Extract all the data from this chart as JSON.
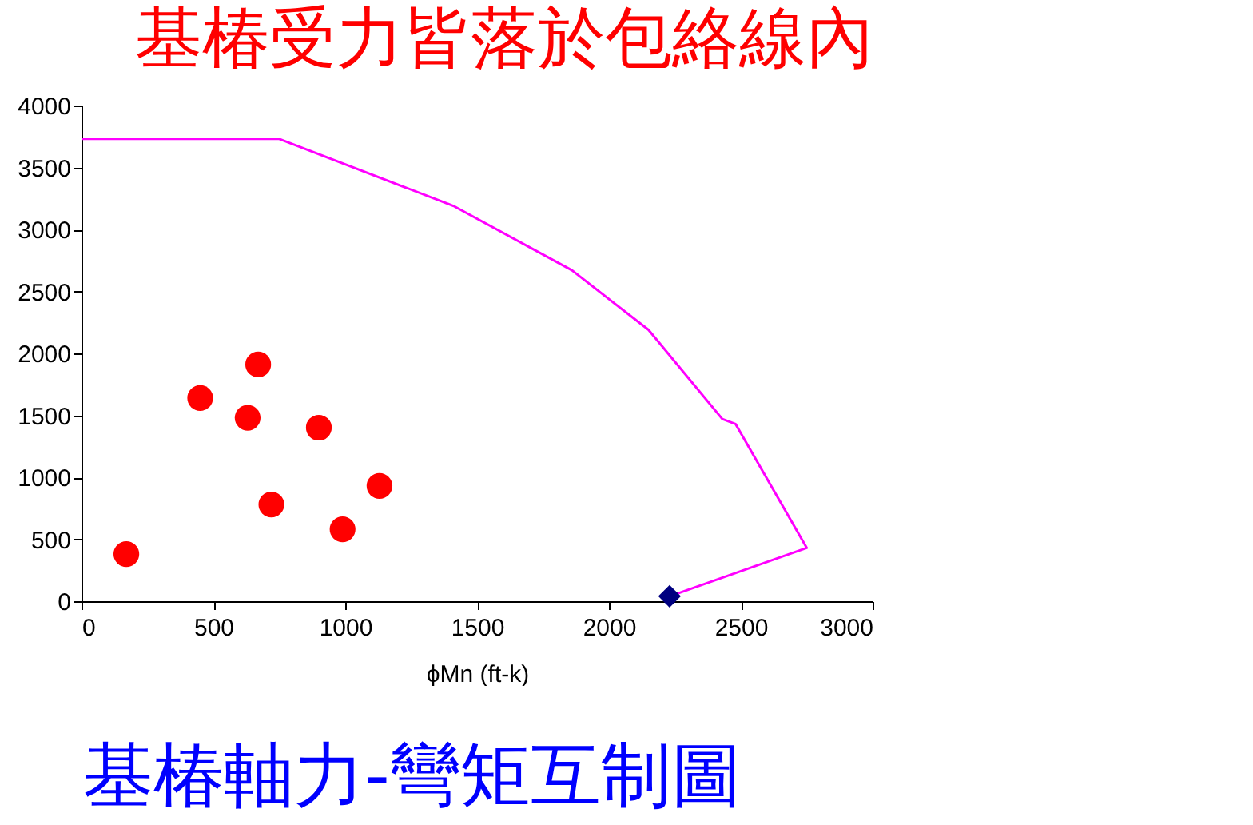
{
  "chart_data": {
    "type": "scatter",
    "title": "基椿受力皆落於包絡線內",
    "xlabel": "ϕMn (ft-k)",
    "annotations": [
      "基椿軸力-彎矩互制圖"
    ],
    "xlim": [
      0,
      3000
    ],
    "xticks": [
      0,
      500,
      1000,
      1500,
      2000,
      2500,
      3000
    ],
    "ylim": [
      0,
      4000
    ],
    "yticks": [
      0,
      500,
      1000,
      1500,
      2000,
      2500,
      3000,
      3500,
      4000
    ],
    "grid": false,
    "series": [
      {
        "type": "line",
        "color": "#ff00ff",
        "marker": "none",
        "x": [
          0,
          750,
          1410,
          1860,
          2150,
          2430,
          2480,
          2750,
          2230
        ],
        "values": [
          3730,
          3730,
          3190,
          2670,
          2190,
          1470,
          1430,
          430,
          40
        ]
      },
      {
        "color": "#ff0000",
        "marker": "circle",
        "x": [
          170,
          450,
          670,
          630,
          900,
          720,
          990,
          1130
        ],
        "values": [
          380,
          1640,
          1910,
          1480,
          1400,
          780,
          580,
          930
        ]
      },
      {
        "color": "#000080",
        "marker": "diamond",
        "x": [
          2230
        ],
        "values": [
          40
        ]
      }
    ]
  }
}
